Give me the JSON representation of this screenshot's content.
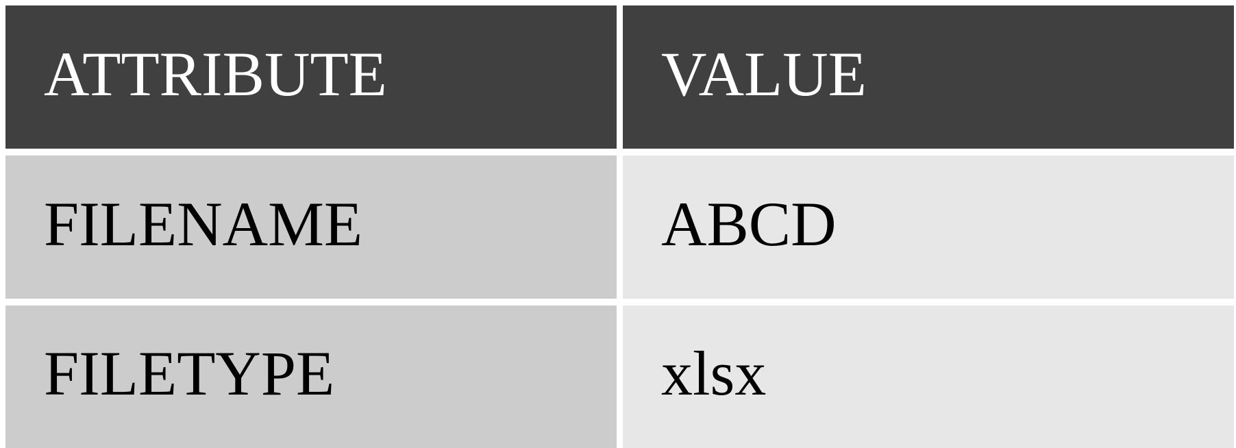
{
  "table": {
    "headers": [
      "ATTRIBUTE",
      "VALUE"
    ],
    "rows": [
      [
        "FILENAME",
        "ABCD"
      ],
      [
        "FILETYPE",
        "xlsx"
      ]
    ]
  },
  "colors": {
    "header_background": "#404040",
    "header_text": "#ffffff",
    "attribute_column_background": "#cccccc",
    "value_column_background": "#e7e7e7",
    "body_text": "#000000",
    "grid_lines": "#ffffff"
  }
}
